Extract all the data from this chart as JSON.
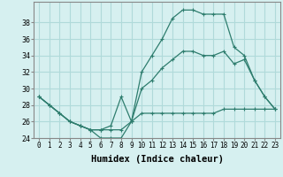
{
  "xlabel": "Humidex (Indice chaleur)",
  "x_values": [
    0,
    1,
    2,
    3,
    4,
    5,
    6,
    7,
    8,
    9,
    10,
    11,
    12,
    13,
    14,
    15,
    16,
    17,
    18,
    19,
    20,
    21,
    22,
    23
  ],
  "line1": [
    29,
    28,
    27,
    26,
    25.5,
    25,
    24,
    24,
    24,
    26,
    32,
    34,
    36,
    38.5,
    39.5,
    39.5,
    39,
    39,
    39,
    35,
    34,
    31,
    29,
    27.5
  ],
  "line2": [
    29,
    28,
    27,
    26,
    25.5,
    25,
    25,
    25.5,
    29,
    26,
    30,
    31,
    32.5,
    33.5,
    34.5,
    34.5,
    34,
    34,
    34.5,
    33,
    33.5,
    31,
    29,
    27.5
  ],
  "line3": [
    29,
    28,
    27,
    26,
    25.5,
    25,
    25,
    25,
    25,
    26,
    27,
    27,
    27,
    27,
    27,
    27,
    27,
    27,
    27.5,
    27.5,
    27.5,
    27.5,
    27.5,
    27.5
  ],
  "line_color": "#2e7d6e",
  "bg_color": "#d6f0f0",
  "grid_color": "#b0dada",
  "ylim": [
    24,
    40
  ],
  "yticks": [
    24,
    26,
    28,
    30,
    32,
    34,
    36,
    38
  ],
  "tick_fontsize": 5.5,
  "label_fontsize": 7.5
}
